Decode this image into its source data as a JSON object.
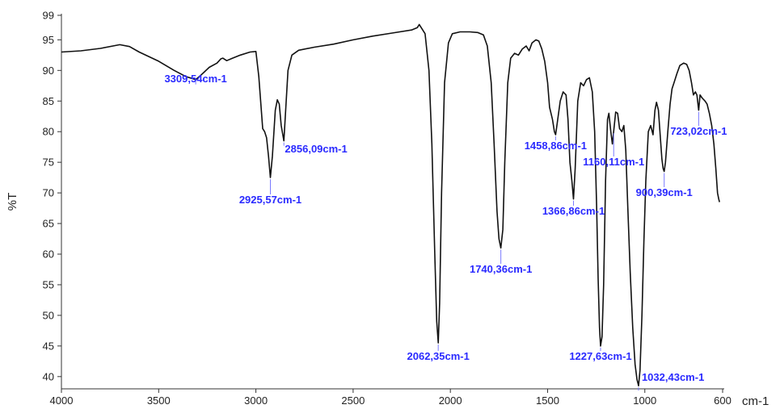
{
  "chart_data": {
    "type": "line",
    "title": "",
    "xlabel": "cm-1",
    "ylabel": "%T",
    "xlim": [
      4000,
      600
    ],
    "ylim": [
      38,
      99
    ],
    "x_reversed": true,
    "grid": false,
    "legend": "none",
    "x_ticks": [
      4000,
      3500,
      3000,
      2500,
      2000,
      1500,
      1000,
      600
    ],
    "y_ticks": [
      40,
      45,
      50,
      55,
      60,
      65,
      70,
      75,
      80,
      85,
      90,
      95,
      99
    ],
    "colors": {
      "line": "#111111",
      "annotation": "#2a2aff",
      "annotation_leader": "#7a7aff",
      "axis": "#333333"
    },
    "series": [
      {
        "points": [
          [
            4000,
            93.0
          ],
          [
            3900,
            93.2
          ],
          [
            3800,
            93.6
          ],
          [
            3700,
            94.2
          ],
          [
            3650,
            93.9
          ],
          [
            3600,
            93.0
          ],
          [
            3500,
            91.5
          ],
          [
            3420,
            90.0
          ],
          [
            3360,
            89.0
          ],
          [
            3309.54,
            88.5
          ],
          [
            3280,
            89.3
          ],
          [
            3240,
            90.5
          ],
          [
            3200,
            91.2
          ],
          [
            3180,
            91.9
          ],
          [
            3170,
            92.0
          ],
          [
            3150,
            91.6
          ],
          [
            3120,
            92.0
          ],
          [
            3080,
            92.5
          ],
          [
            3030,
            93.0
          ],
          [
            3000,
            93.1
          ],
          [
            2985,
            89.0
          ],
          [
            2965,
            80.5
          ],
          [
            2955,
            80.0
          ],
          [
            2945,
            79.0
          ],
          [
            2935,
            76.0
          ],
          [
            2925.57,
            72.5
          ],
          [
            2915,
            76.0
          ],
          [
            2900,
            83.5
          ],
          [
            2890,
            85.2
          ],
          [
            2880,
            84.5
          ],
          [
            2870,
            81.0
          ],
          [
            2856.09,
            78.5
          ],
          [
            2848,
            83.0
          ],
          [
            2835,
            90.0
          ],
          [
            2815,
            92.5
          ],
          [
            2780,
            93.3
          ],
          [
            2700,
            93.8
          ],
          [
            2600,
            94.3
          ],
          [
            2500,
            95.0
          ],
          [
            2400,
            95.6
          ],
          [
            2300,
            96.1
          ],
          [
            2200,
            96.6
          ],
          [
            2170,
            97.0
          ],
          [
            2160,
            97.5
          ],
          [
            2150,
            97.0
          ],
          [
            2130,
            96.0
          ],
          [
            2110,
            90.0
          ],
          [
            2095,
            78.0
          ],
          [
            2080,
            60.0
          ],
          [
            2070,
            49.0
          ],
          [
            2062.35,
            45.5
          ],
          [
            2055,
            52.0
          ],
          [
            2045,
            70.0
          ],
          [
            2030,
            88.0
          ],
          [
            2010,
            94.5
          ],
          [
            1990,
            96.0
          ],
          [
            1950,
            96.3
          ],
          [
            1900,
            96.3
          ],
          [
            1860,
            96.2
          ],
          [
            1830,
            95.8
          ],
          [
            1810,
            94.0
          ],
          [
            1790,
            88.0
          ],
          [
            1775,
            78.0
          ],
          [
            1760,
            67.0
          ],
          [
            1750,
            62.5
          ],
          [
            1740.36,
            61.0
          ],
          [
            1730,
            64.0
          ],
          [
            1720,
            75.0
          ],
          [
            1705,
            88.0
          ],
          [
            1690,
            92.0
          ],
          [
            1670,
            92.8
          ],
          [
            1650,
            92.5
          ],
          [
            1630,
            93.5
          ],
          [
            1610,
            94.0
          ],
          [
            1595,
            93.2
          ],
          [
            1580,
            94.5
          ],
          [
            1560,
            95.0
          ],
          [
            1545,
            94.8
          ],
          [
            1530,
            93.5
          ],
          [
            1515,
            91.5
          ],
          [
            1500,
            88.0
          ],
          [
            1490,
            84.0
          ],
          [
            1475,
            82.0
          ],
          [
            1465,
            80.0
          ],
          [
            1458.86,
            79.5
          ],
          [
            1450,
            81.5
          ],
          [
            1435,
            85.0
          ],
          [
            1420,
            86.5
          ],
          [
            1405,
            86.0
          ],
          [
            1395,
            82.0
          ],
          [
            1385,
            75.0
          ],
          [
            1375,
            72.0
          ],
          [
            1366.86,
            69.0
          ],
          [
            1358,
            74.0
          ],
          [
            1345,
            85.0
          ],
          [
            1330,
            88.0
          ],
          [
            1315,
            87.5
          ],
          [
            1300,
            88.5
          ],
          [
            1285,
            88.8
          ],
          [
            1270,
            86.5
          ],
          [
            1258,
            80.0
          ],
          [
            1248,
            68.0
          ],
          [
            1240,
            56.0
          ],
          [
            1233,
            48.0
          ],
          [
            1227.63,
            45.0
          ],
          [
            1220,
            46.5
          ],
          [
            1212,
            55.0
          ],
          [
            1202,
            72.0
          ],
          [
            1192,
            82.0
          ],
          [
            1185,
            83.0
          ],
          [
            1175,
            80.0
          ],
          [
            1167,
            78.0
          ],
          [
            1160.11,
            80.0
          ],
          [
            1150,
            83.2
          ],
          [
            1140,
            83.0
          ],
          [
            1130,
            80.5
          ],
          [
            1118,
            80.0
          ],
          [
            1108,
            81.0
          ],
          [
            1098,
            77.0
          ],
          [
            1088,
            68.0
          ],
          [
            1075,
            57.0
          ],
          [
            1062,
            48.0
          ],
          [
            1050,
            42.0
          ],
          [
            1040,
            39.5
          ],
          [
            1032.43,
            38.5
          ],
          [
            1025,
            41.0
          ],
          [
            1015,
            50.0
          ],
          [
            1005,
            62.0
          ],
          [
            995,
            72.0
          ],
          [
            982,
            80.0
          ],
          [
            970,
            81.0
          ],
          [
            958,
            79.5
          ],
          [
            948,
            83.5
          ],
          [
            940,
            84.8
          ],
          [
            930,
            83.5
          ],
          [
            920,
            79.0
          ],
          [
            912,
            75.5
          ],
          [
            906,
            74.0
          ],
          [
            900.39,
            73.5
          ],
          [
            894,
            75.0
          ],
          [
            882,
            80.0
          ],
          [
            870,
            84.5
          ],
          [
            860,
            87.0
          ],
          [
            850,
            88.0
          ],
          [
            835,
            89.5
          ],
          [
            820,
            90.8
          ],
          [
            800,
            91.2
          ],
          [
            785,
            91.0
          ],
          [
            772,
            90.0
          ],
          [
            760,
            88.0
          ],
          [
            750,
            86.0
          ],
          [
            740,
            86.5
          ],
          [
            732,
            86.0
          ],
          [
            723.02,
            83.5
          ],
          [
            716,
            86.0
          ],
          [
            705,
            85.5
          ],
          [
            690,
            85.0
          ],
          [
            680,
            84.5
          ],
          [
            668,
            83.0
          ],
          [
            656,
            81.0
          ],
          [
            645,
            78.0
          ],
          [
            635,
            74.0
          ],
          [
            626,
            70.0
          ],
          [
            620,
            69.0
          ],
          [
            616,
            68.5
          ]
        ]
      }
    ],
    "annotations": [
      {
        "x": 3309.54,
        "y": 88.5,
        "text": "3309,54cm-1"
      },
      {
        "x": 2925.57,
        "y": 72.5,
        "text": "2925,57cm-1"
      },
      {
        "x": 2856.09,
        "y": 78.5,
        "text": "2856,09cm-1"
      },
      {
        "x": 2062.35,
        "y": 45.5,
        "text": "2062,35cm-1"
      },
      {
        "x": 1740.36,
        "y": 61.0,
        "text": "1740,36cm-1"
      },
      {
        "x": 1458.86,
        "y": 79.5,
        "text": "1458,86cm-1"
      },
      {
        "x": 1366.86,
        "y": 69.0,
        "text": "1366,86cm-1"
      },
      {
        "x": 1227.63,
        "y": 45.0,
        "text": "1227,63cm-1"
      },
      {
        "x": 1160.11,
        "y": 80.0,
        "text": "1160,11cm-1"
      },
      {
        "x": 1032.43,
        "y": 38.5,
        "text": "1032,43cm-1"
      },
      {
        "x": 900.39,
        "y": 73.5,
        "text": "900,39cm-1"
      },
      {
        "x": 723.02,
        "y": 83.5,
        "text": "723,02cm-1"
      }
    ]
  }
}
